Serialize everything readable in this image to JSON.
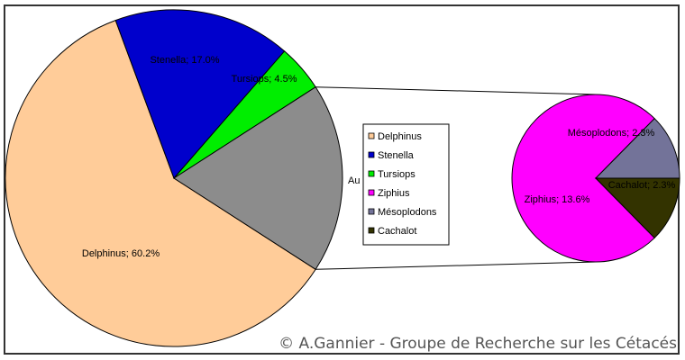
{
  "chart_data": {
    "type": "pie",
    "variant": "pie-of-pie",
    "slices": [
      {
        "label": "Delphinus",
        "value": 60.2,
        "label_text": "Delphinus; 60.2%",
        "color": "#ffcc99"
      },
      {
        "label": "Stenella",
        "value": 17.0,
        "label_text": "Stenella; 17.0%",
        "color": "#0000cc"
      },
      {
        "label": "Tursiops",
        "value": 4.5,
        "label_text": "Tursiops; 4.5%",
        "color": "#00ee00"
      },
      {
        "label": "Autres",
        "value": 18.2,
        "label_text": "Au",
        "color": "#8c8c8c"
      }
    ],
    "secondary_slices": [
      {
        "label": "Ziphius",
        "value": 13.6,
        "label_text": "Ziphius; 13.6%",
        "color": "#ff00ff"
      },
      {
        "label": "Mésoplodons",
        "value": 2.3,
        "label_text": "Mésoplodons; 2.3%",
        "color": "#737399"
      },
      {
        "label": "Cachalot",
        "value": 2.3,
        "label_text": "Cachalot; 2.3%",
        "color": "#333300"
      }
    ],
    "legend": {
      "placement": "center",
      "entries": [
        {
          "label": "Delphinus",
          "color": "#ffcc99"
        },
        {
          "label": "Stenella",
          "color": "#0000cc"
        },
        {
          "label": "Tursiops",
          "color": "#00ee00"
        },
        {
          "label": "Ziphius",
          "color": "#ff00ff"
        },
        {
          "label": "Mésoplodons",
          "color": "#737399"
        },
        {
          "label": "Cachalot",
          "color": "#333300"
        }
      ]
    },
    "title": ""
  },
  "credit": "© A.Gannier - Groupe de Recherche sur les Cétacés"
}
